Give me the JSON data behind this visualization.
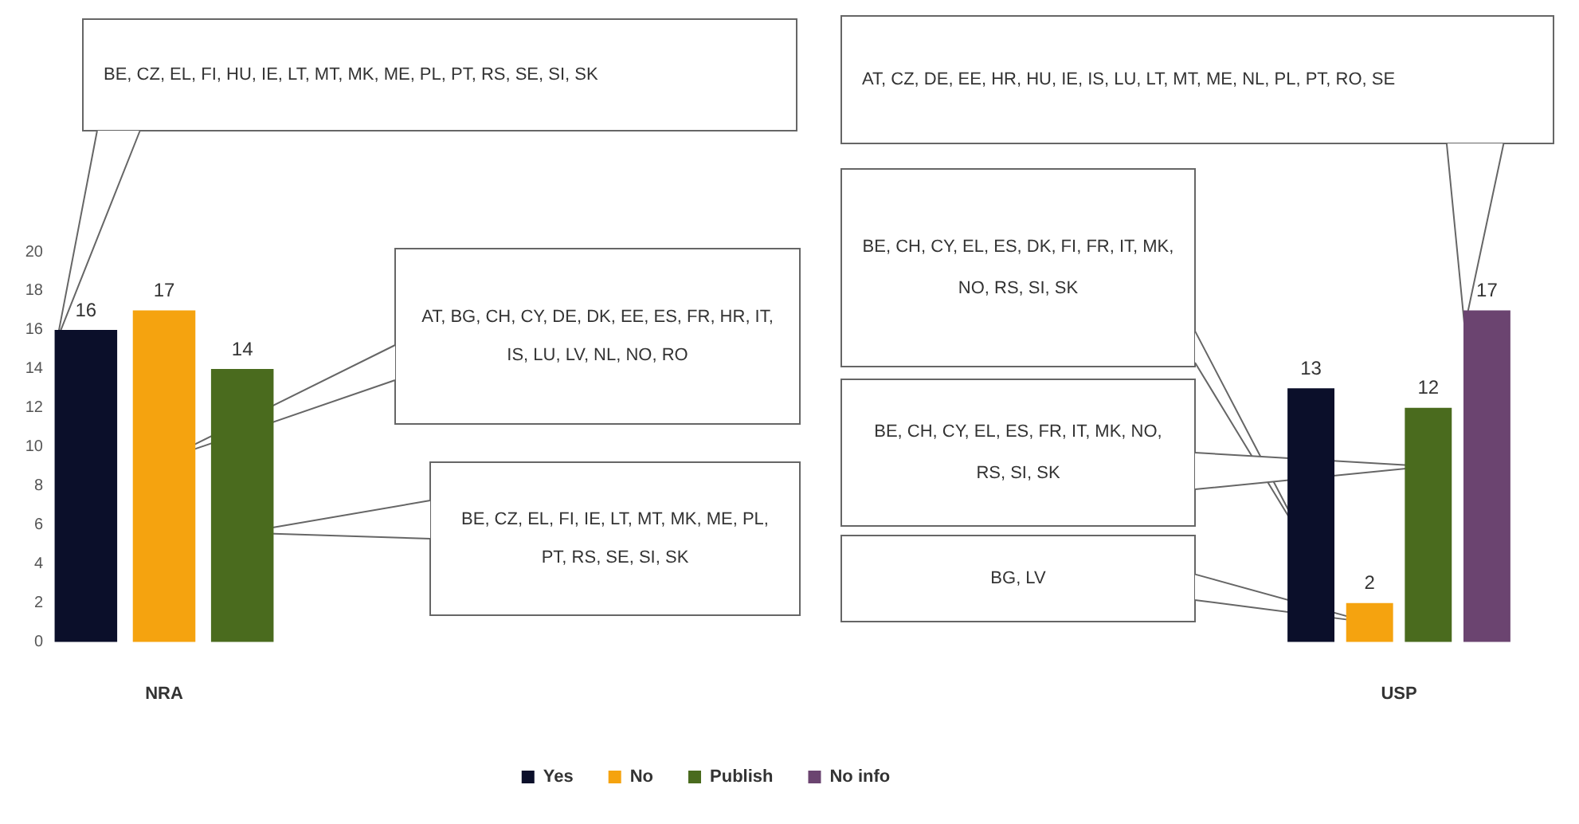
{
  "chart_data": {
    "type": "bar",
    "categories": [
      "NRA",
      "USP"
    ],
    "series": [
      {
        "name": "Yes",
        "color": "#0b0f2a",
        "values": [
          16,
          13
        ]
      },
      {
        "name": "No",
        "color": "#f5a30f",
        "values": [
          17,
          2
        ]
      },
      {
        "name": "Publish",
        "color": "#4a6b1e",
        "values": [
          14,
          12
        ]
      },
      {
        "name": "No info",
        "color": "#6b4470",
        "values": [
          null,
          17
        ]
      }
    ],
    "ylim": [
      0,
      20
    ],
    "yticks": [
      0,
      2,
      4,
      6,
      8,
      10,
      12,
      14,
      16,
      18,
      20
    ],
    "grid": false,
    "legend": "bottom",
    "data_labels": true,
    "annotations": [
      "BE, CZ, EL, FI, HU, IE, LT, MT, MK, ME, PL, PT, RS, SE, SI, SK",
      "AT, BG, CH, CY, DE, DK, EE, ES, FR, HR, IT, IS, LU, LV, NL, NO, RO",
      "BE, CZ, EL, FI, IE, LT, MT, MK, ME, PL, PT, RS, SE, SI, SK",
      "AT, CZ, DE, EE, HR, HU, IE, IS, LU, LT, MT, ME, NL, PL, PT, RO, SE",
      "BE, CH, CY, EL, ES, DK, FI, FR, IT, MK, NO, RS, SI, SK",
      "BE, CH, CY, EL, ES, FR, IT, MK, NO, RS, SI, SK",
      "BG, LV"
    ]
  }
}
